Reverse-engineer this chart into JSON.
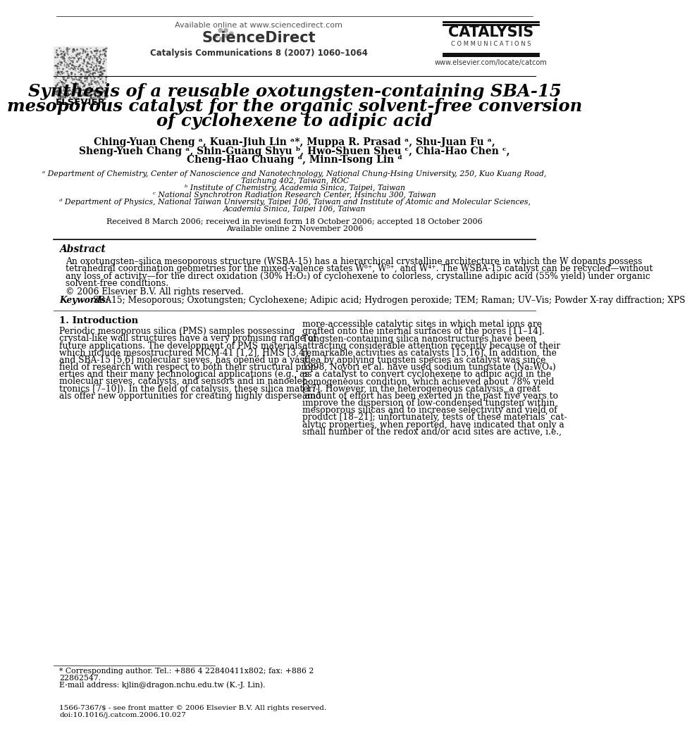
{
  "bg_color": "#ffffff",
  "title_line1": "Synthesis of a reusable oxotungsten-containing SBA-15",
  "title_line2": "mesoporous catalyst for the organic solvent-free conversion",
  "title_line3": "of cyclohexene to adipic acid",
  "header_available": "Available online at www.sciencedirect.com",
  "header_journal": "Catalysis Communications 8 (2007) 1060–1064",
  "header_sciencedirect": "ScienceDirect",
  "header_catalysis": "CATALYSIS",
  "header_communications": "C O M M U N I C A T I O N S",
  "header_www": "www.elsevier.com/locate/catcom",
  "header_elsevier": "ELSEVIER",
  "authors": "Ching-Yuan Cheng ᵃ, Kuan-Jiuh Lin ᵃ*, Muppa R. Prasad ᵃ, Shu-Juan Fu ᵃ,",
  "authors2": "Sheng-Yueh Chang ᵃ, Shin-Guang Shyu ᵇ, Hwo-Shuen Sheu ᶜ, Chia-Hao Chen ᶜ,",
  "authors3": "Cheng-Hao Chuang ᵈ, Minn-Tsong Lin ᵈ",
  "affil_a": "ᵃ Department of Chemistry, Center of Nanoscience and Nanotechnology, National Chung-Hsing University, 250, Kuo Kuang Road,",
  "affil_a2": "Taichung 402, Taiwan, ROC",
  "affil_b": "ᵇ Institute of Chemistry, Academia Sinica, Taipei, Taiwan",
  "affil_c": "ᶜ National Synchrotron Radiation Research Center, Hsinchu 300, Taiwan",
  "affil_d": "ᵈ Department of Physics, National Taiwan University, Taipei 106, Taiwan and Institute of Atomic and Molecular Sciences,",
  "affil_d2": "Academia Sinica, Taipei 106, Taiwan",
  "received": "Received 8 March 2006; received in revised form 18 October 2006; accepted 18 October 2006",
  "available": "Available online 2 November 2006",
  "abstract_title": "Abstract",
  "abstract_text": "An oxotungsten–silica mesoporous structure (WSBA-15) has a hierarchical crystalline architecture in which the W dopants possess\ntetrahedral coordination geometries for the mixed-valence states W⁶⁺, W⁵⁺, and W⁴⁺. The WSBA-15 catalyst can be recycled—without\nany loss of activity—for the direct oxidation (30% H₂O₂) of cyclohexene to colorless, crystalline adipic acid (55% yield) under organic\nsolvent-free conditions.",
  "copyright": "© 2006 Elsevier B.V. All rights reserved.",
  "keywords_label": "Keywords:",
  "keywords_text": " SBA15; Mesoporous; Oxotungsten; Cyclohexene; Adipic acid; Hydrogen peroxide; TEM; Raman; UV–Vis; Powder X-ray diffraction; XPS",
  "section1_title": "1. Introduction",
  "intro_col1": "Periodic mesoporous silica (PMS) samples possessing\ncrystal-like wall structures have a very promising range of\nfuture applications. The development of PMS materials,\nwhich include mesostructured MCM-41 [1,2], HMS [3,4],\nand SBA-15 [5,6] molecular sieves, has opened up a vast\nfield of research with respect to both their structural prop-\nerties and their many technological applications (e.g., as\nmolecular sieves, catalysts, and sensors and in nanoelec-\ntronics [7–10]). In the field of catalysis, these silica materi-\nals offer new opportunities for creating highly disperse and",
  "intro_col2": "more-accessible catalytic sites in which metal ions are\ngrafted onto the internal surfaces of the pores [11–14].\nTungsten-containing silica nanostructures have been\nattracting considerable attention recently because of their\nremarkable activities as catalysts [15,16]. In addition, the\nidea by applying tungsten species as catalyst was since\n1998, Noyori et al. have used sodium tungstate (Na₂WO₄)\nas a catalyst to convert cyclohexene to adipic acid in the\nhomogeneous condition, which achieved about 78% yield\n[17]. However, in the heterogeneous catalysis, a great\namount of effort has been exerted in the past five years to\nimprove the dispersion of low-condensed tungsten within\nmesoporous silicas and to increase selectivity and yield of\nproduct [18–21]; unfortunately, tests of these materials’ cat-\nalytic properties, when reported, have indicated that only a\nsmall number of the redox and/or acid sites are active, i.e.,",
  "footnote_star": "* Corresponding author. Tel.: +886 4 22840411x802; fax: +886 2",
  "footnote_star2": "22862547.",
  "footnote_email": "E-mail address: kjlin@dragon.nchu.edu.tw (K.-J. Lin).",
  "footer_issn": "1566-7367/$ - see front matter © 2006 Elsevier B.V. All rights reserved.",
  "footer_doi": "doi:10.1016/j.catcom.2006.10.027"
}
